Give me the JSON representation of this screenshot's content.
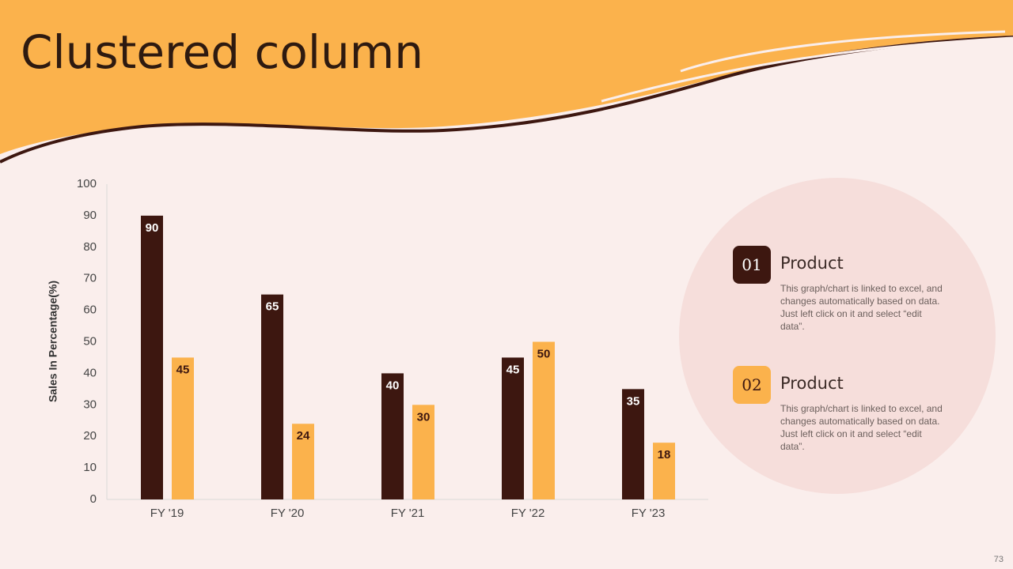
{
  "chart_data": {
    "type": "bar",
    "title": "Clustered column",
    "categories": [
      "FY '19",
      "FY '20",
      "FY '21",
      "FY '22",
      "FY '23"
    ],
    "series": [
      {
        "name": "Product",
        "color": "#3d1710",
        "values": [
          90,
          65,
          40,
          45,
          35
        ]
      },
      {
        "name": "Product",
        "color": "#fbb24c",
        "values": [
          45,
          24,
          30,
          50,
          18
        ]
      }
    ],
    "y_label": "Sales In Percentage(%)",
    "ylim": [
      0,
      100
    ],
    "yticks": [
      0,
      10,
      20,
      30,
      40,
      50,
      60,
      70,
      80,
      90,
      100
    ],
    "grid": false
  },
  "panel": [
    {
      "number": "01",
      "text": "This graph/chart is linked to excel, and changes automatically based on data. Just left click on it and select “edit data”."
    },
    {
      "number": "02",
      "text": "This graph/chart is linked to excel, and changes automatically based on data. Just left click on it and select “edit data”."
    }
  ],
  "page_number": "73"
}
